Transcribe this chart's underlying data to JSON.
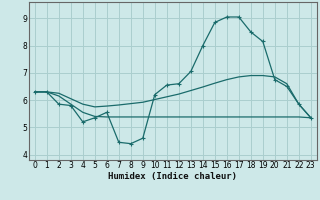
{
  "xlabel": "Humidex (Indice chaleur)",
  "background_color": "#cde8e8",
  "grid_color": "#aacece",
  "line_color": "#1a6b6b",
  "xlim": [
    -0.5,
    23.5
  ],
  "ylim": [
    3.8,
    9.6
  ],
  "yticks": [
    4,
    5,
    6,
    7,
    8,
    9
  ],
  "xticks": [
    0,
    1,
    2,
    3,
    4,
    5,
    6,
    7,
    8,
    9,
    10,
    11,
    12,
    13,
    14,
    15,
    16,
    17,
    18,
    19,
    20,
    21,
    22,
    23
  ],
  "line1_x": [
    0,
    1,
    2,
    3,
    4,
    5,
    6,
    7,
    8,
    9,
    10,
    11,
    12,
    13,
    14,
    15,
    16,
    17,
    18,
    19,
    20,
    21,
    22,
    23
  ],
  "line1_y": [
    6.3,
    6.3,
    5.85,
    5.8,
    5.2,
    5.35,
    5.55,
    4.45,
    4.4,
    4.6,
    6.2,
    6.55,
    6.6,
    7.05,
    8.0,
    8.85,
    9.05,
    9.05,
    8.5,
    8.15,
    6.75,
    6.5,
    5.85,
    5.35
  ],
  "line2_x": [
    0,
    1,
    2,
    3,
    4,
    5,
    6,
    7,
    8,
    9,
    10,
    11,
    12,
    13,
    14,
    15,
    16,
    17,
    18,
    19,
    20,
    21,
    22,
    23
  ],
  "line2_y": [
    6.3,
    6.3,
    6.15,
    5.85,
    5.55,
    5.4,
    5.38,
    5.38,
    5.38,
    5.38,
    5.38,
    5.38,
    5.38,
    5.38,
    5.38,
    5.38,
    5.38,
    5.38,
    5.38,
    5.38,
    5.38,
    5.38,
    5.38,
    5.35
  ],
  "line3_x": [
    0,
    1,
    2,
    3,
    4,
    5,
    6,
    7,
    8,
    9,
    10,
    11,
    12,
    13,
    14,
    15,
    16,
    17,
    18,
    19,
    20,
    21,
    22,
    23
  ],
  "line3_y": [
    6.3,
    6.3,
    6.25,
    6.05,
    5.85,
    5.75,
    5.78,
    5.82,
    5.87,
    5.92,
    6.02,
    6.12,
    6.22,
    6.35,
    6.48,
    6.62,
    6.75,
    6.85,
    6.9,
    6.9,
    6.85,
    6.6,
    5.85,
    5.35
  ]
}
